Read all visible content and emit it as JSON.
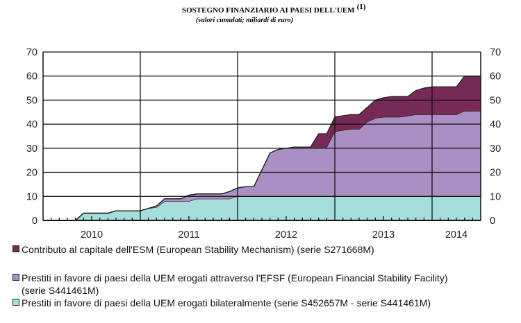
{
  "chart_data": {
    "type": "area",
    "stacked": true,
    "title": "SOSTEGNO FINANZIARIO AI PAESI DELL'UEM",
    "title_note": "(1)",
    "subtitle": "(valori cumulati; miliardi di euro)",
    "xlabel": "",
    "ylabel": "",
    "ylim": [
      0,
      70
    ],
    "yticks": [
      "0",
      "10",
      "20",
      "30",
      "40",
      "50",
      "60",
      "70"
    ],
    "x_period": "monthly, Jan 2010 - Jun 2014",
    "year_labels": [
      "2010",
      "2011",
      "2012",
      "2013",
      "2014"
    ],
    "grid": true,
    "legend_position": "bottom",
    "series": [
      {
        "name": "Prestiti in favore di paesi della UEM erogati bilateralmente (serie S452657M - serie S441461M)",
        "color": "#a5dcdc",
        "values": [
          0,
          0,
          0,
          0,
          3,
          3,
          3,
          3,
          4,
          4,
          4,
          4,
          5,
          5.5,
          8,
          8,
          8,
          8,
          9,
          9,
          9,
          9,
          9,
          10,
          10,
          10,
          10,
          10,
          10,
          10,
          10,
          10,
          10,
          10,
          10,
          10,
          10,
          10,
          10,
          10,
          10,
          10,
          10,
          10,
          10,
          10,
          10,
          10,
          10,
          10,
          10,
          10,
          10,
          10
        ]
      },
      {
        "name": "Prestiti in favore di paesi della UEM erogati attraverso l'EFSF (European Financial Stability Facility) (serie S441461M)",
        "color": "#a98fc4",
        "values": [
          0,
          0,
          0,
          0,
          0,
          0,
          0,
          0,
          0,
          0,
          0,
          0,
          0,
          0.5,
          1,
          1,
          1,
          2.5,
          2,
          2,
          2,
          2,
          3,
          3.5,
          4,
          4,
          11,
          18,
          19.5,
          20,
          20.5,
          20.5,
          20.5,
          20.5,
          20.5,
          27,
          27.5,
          28,
          28,
          31,
          32.5,
          33,
          33,
          33,
          33.5,
          34,
          34,
          34,
          34,
          34,
          34,
          35.5,
          35.5,
          35.5
        ]
      },
      {
        "name": "Contributo al capitale dell'ESM (European Stability Mechanism) (serie S271668M)",
        "color": "#772a55",
        "values": [
          0,
          0,
          0,
          0,
          0,
          0,
          0,
          0,
          0,
          0,
          0,
          0,
          0,
          0,
          0,
          0,
          0,
          0,
          0,
          0,
          0,
          0,
          0,
          0,
          0,
          0,
          0,
          0,
          0,
          0,
          0,
          0,
          0,
          5.5,
          5.5,
          6,
          6,
          6,
          6,
          6,
          7.5,
          8,
          8.5,
          8.5,
          8,
          10,
          11,
          11.5,
          11.5,
          11.5,
          11.5,
          14.5,
          14.5,
          14.5
        ]
      }
    ]
  },
  "legend": {
    "esm": "Contributo al capitale dell'ESM (European Stability Mechanism) (serie S271668M)",
    "efsf_line1": "Prestiti in favore di paesi della UEM erogati attraverso l'EFSF (European Financial Stability Facility)",
    "efsf_line2": "(serie S441461M)",
    "bilateral": "Prestiti in favore di paesi della UEM erogati bilateralmente (serie S452657M - serie S441461M)"
  }
}
